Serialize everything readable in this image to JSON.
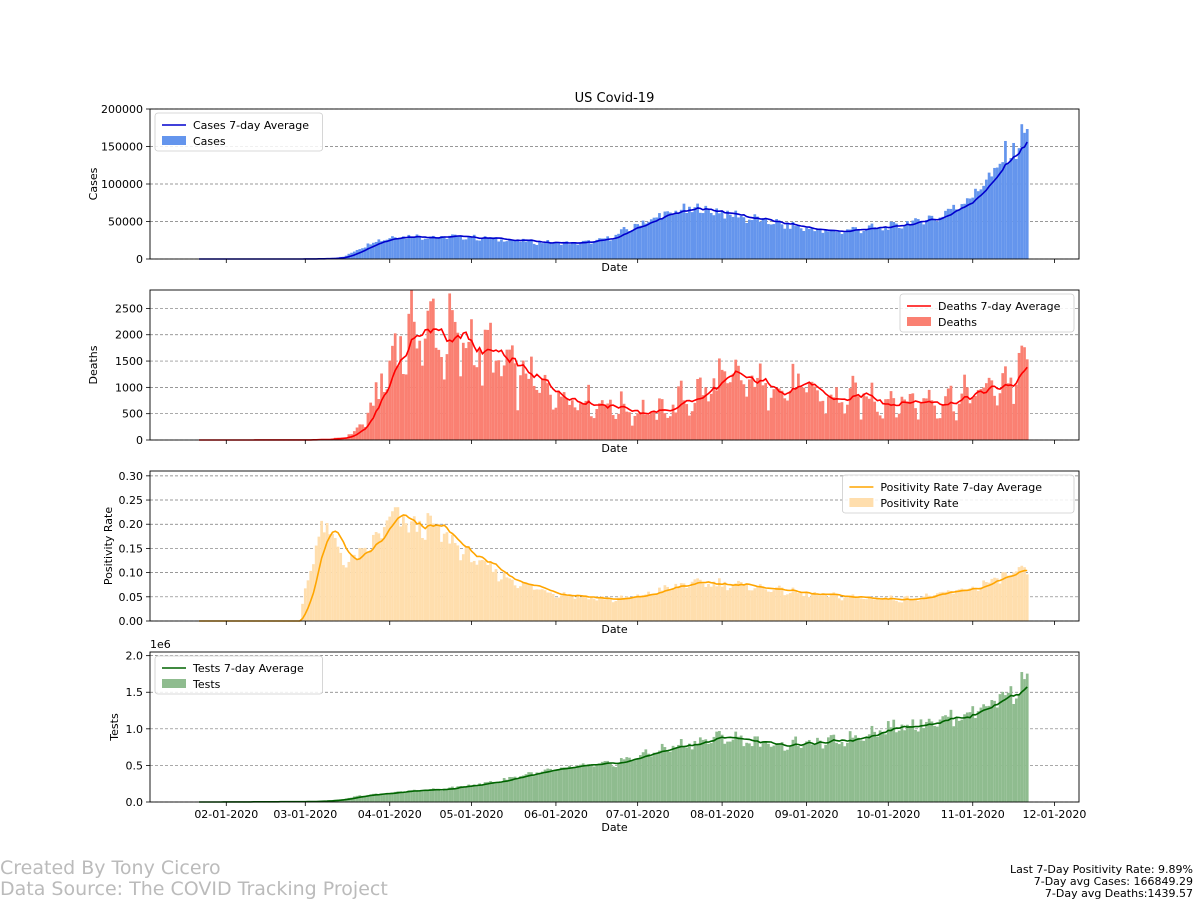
{
  "chart_data": [
    {
      "type": "bar",
      "title": "US Covid-19",
      "xlabel": "Date",
      "ylabel": "Cases",
      "ylim": [
        0,
        200000
      ],
      "yticks": [
        0,
        50000,
        100000,
        150000,
        200000
      ],
      "ytick_labels": [
        "0",
        "50000",
        "100000",
        "150000",
        "200000"
      ],
      "grid": "horizontal dashed",
      "legend_position": "top-left",
      "bar_color": "#6495ed",
      "line_color": "#0000cd",
      "series": [
        {
          "name": "Cases 7-day Average",
          "kind": "line"
        },
        {
          "name": "Cases",
          "kind": "bar"
        }
      ],
      "anchors": [
        [
          "2020-01-22",
          0
        ],
        [
          "2020-02-20",
          10
        ],
        [
          "2020-03-01",
          100
        ],
        [
          "2020-03-10",
          600
        ],
        [
          "2020-03-15",
          3000
        ],
        [
          "2020-03-20",
          12000
        ],
        [
          "2020-03-25",
          22000
        ],
        [
          "2020-03-31",
          28000
        ],
        [
          "2020-04-05",
          31000
        ],
        [
          "2020-04-10",
          30500
        ],
        [
          "2020-04-20",
          29000
        ],
        [
          "2020-04-26",
          30000
        ],
        [
          "2020-05-05",
          28000
        ],
        [
          "2020-05-15",
          25500
        ],
        [
          "2020-05-25",
          22500
        ],
        [
          "2020-06-05",
          21000
        ],
        [
          "2020-06-12",
          22000
        ],
        [
          "2020-06-20",
          27000
        ],
        [
          "2020-06-25",
          35000
        ],
        [
          "2020-07-01",
          46000
        ],
        [
          "2020-07-10",
          58000
        ],
        [
          "2020-07-18",
          65000
        ],
        [
          "2020-07-25",
          66500
        ],
        [
          "2020-08-01",
          62000
        ],
        [
          "2020-08-10",
          55000
        ],
        [
          "2020-08-20",
          48000
        ],
        [
          "2020-08-30",
          42000
        ],
        [
          "2020-09-10",
          36000
        ],
        [
          "2020-09-20",
          40000
        ],
        [
          "2020-10-01",
          42000
        ],
        [
          "2020-10-10",
          49000
        ],
        [
          "2020-10-20",
          57000
        ],
        [
          "2020-10-30",
          80000
        ],
        [
          "2020-11-05",
          100000
        ],
        [
          "2020-11-10",
          120000
        ],
        [
          "2020-11-15",
          145000
        ],
        [
          "2020-11-20",
          162000
        ],
        [
          "2020-11-21",
          167000
        ]
      ],
      "amp": 0.12
    },
    {
      "type": "bar",
      "title": "",
      "xlabel": "Date",
      "ylabel": "Deaths",
      "ylim": [
        0,
        2850
      ],
      "yticks": [
        0,
        500,
        1000,
        1500,
        2000,
        2500
      ],
      "ytick_labels": [
        "0",
        "500",
        "1000",
        "1500",
        "2000",
        "2500"
      ],
      "grid": "horizontal dashed",
      "legend_position": "top-right",
      "bar_color": "#fa8072",
      "line_color": "#ff0000",
      "series": [
        {
          "name": "Deaths 7-day Average",
          "kind": "line"
        },
        {
          "name": "Deaths",
          "kind": "bar"
        }
      ],
      "anchors": [
        [
          "2020-01-22",
          0
        ],
        [
          "2020-03-01",
          2
        ],
        [
          "2020-03-10",
          15
        ],
        [
          "2020-03-15",
          50
        ],
        [
          "2020-03-20",
          180
        ],
        [
          "2020-03-25",
          550
        ],
        [
          "2020-03-31",
          1300
        ],
        [
          "2020-04-05",
          1900
        ],
        [
          "2020-04-10",
          2050
        ],
        [
          "2020-04-15",
          2100
        ],
        [
          "2020-04-20",
          1950
        ],
        [
          "2020-04-25",
          1850
        ],
        [
          "2020-04-30",
          1780
        ],
        [
          "2020-05-05",
          1700
        ],
        [
          "2020-05-10",
          1500
        ],
        [
          "2020-05-15",
          1300
        ],
        [
          "2020-05-20",
          1200
        ],
        [
          "2020-05-25",
          1050
        ],
        [
          "2020-06-01",
          900
        ],
        [
          "2020-06-10",
          780
        ],
        [
          "2020-06-20",
          670
        ],
        [
          "2020-06-30",
          560
        ],
        [
          "2020-07-08",
          500
        ],
        [
          "2020-07-15",
          700
        ],
        [
          "2020-07-25",
          900
        ],
        [
          "2020-08-01",
          1120
        ],
        [
          "2020-08-10",
          1080
        ],
        [
          "2020-08-20",
          1050
        ],
        [
          "2020-08-30",
          950
        ],
        [
          "2020-09-05",
          850
        ],
        [
          "2020-09-10",
          760
        ],
        [
          "2020-09-20",
          800
        ],
        [
          "2020-09-30",
          770
        ],
        [
          "2020-10-10",
          720
        ],
        [
          "2020-10-20",
          780
        ],
        [
          "2020-10-31",
          830
        ],
        [
          "2020-11-08",
          1000
        ],
        [
          "2020-11-15",
          1150
        ],
        [
          "2020-11-21",
          1440
        ]
      ],
      "amp": 0.32
    },
    {
      "type": "bar",
      "title": "",
      "xlabel": "Date",
      "ylabel": "Positivity Rate",
      "ylim": [
        0,
        0.31
      ],
      "yticks": [
        0,
        0.05,
        0.1,
        0.15,
        0.2,
        0.25,
        0.3
      ],
      "ytick_labels": [
        "0.00",
        "0.05",
        "0.10",
        "0.15",
        "0.20",
        "0.25",
        "0.30"
      ],
      "grid": "horizontal dashed",
      "legend_position": "top-right",
      "bar_color": "#ffdead",
      "line_color": "#ffa500",
      "series": [
        {
          "name": "Positivity Rate 7-day Average",
          "kind": "line"
        },
        {
          "name": "Positivity Rate",
          "kind": "bar"
        }
      ],
      "anchors": [
        [
          "2020-01-22",
          0
        ],
        [
          "2020-02-28",
          0
        ],
        [
          "2020-03-01",
          0.07
        ],
        [
          "2020-03-05",
          0.15
        ],
        [
          "2020-03-08",
          0.2
        ],
        [
          "2020-03-12",
          0.16
        ],
        [
          "2020-03-16",
          0.12
        ],
        [
          "2020-03-20",
          0.13
        ],
        [
          "2020-03-26",
          0.16
        ],
        [
          "2020-04-01",
          0.21
        ],
        [
          "2020-04-05",
          0.21
        ],
        [
          "2020-04-10",
          0.19
        ],
        [
          "2020-04-15",
          0.2
        ],
        [
          "2020-04-20",
          0.18
        ],
        [
          "2020-04-25",
          0.16
        ],
        [
          "2020-05-01",
          0.13
        ],
        [
          "2020-05-10",
          0.1
        ],
        [
          "2020-05-20",
          0.075
        ],
        [
          "2020-06-01",
          0.057
        ],
        [
          "2020-06-15",
          0.048
        ],
        [
          "2020-06-22",
          0.044
        ],
        [
          "2020-07-01",
          0.05
        ],
        [
          "2020-07-10",
          0.065
        ],
        [
          "2020-07-20",
          0.077
        ],
        [
          "2020-07-31",
          0.078
        ],
        [
          "2020-08-10",
          0.072
        ],
        [
          "2020-08-20",
          0.066
        ],
        [
          "2020-09-01",
          0.055
        ],
        [
          "2020-09-15",
          0.05
        ],
        [
          "2020-09-25",
          0.047
        ],
        [
          "2020-10-05",
          0.045
        ],
        [
          "2020-10-15",
          0.05
        ],
        [
          "2020-10-25",
          0.06
        ],
        [
          "2020-11-05",
          0.075
        ],
        [
          "2020-11-12",
          0.09
        ],
        [
          "2020-11-17",
          0.1
        ],
        [
          "2020-11-21",
          0.099
        ]
      ],
      "amp": 0.12
    },
    {
      "type": "bar",
      "title": "",
      "xlabel": "Date",
      "ylabel": "Tests",
      "offset_label": "1e6",
      "ylim": [
        0,
        2050000
      ],
      "yticks": [
        0,
        500000,
        1000000,
        1500000,
        2000000
      ],
      "ytick_labels": [
        "0.0",
        "0.5",
        "1.0",
        "1.5",
        "2.0"
      ],
      "grid": "horizontal dashed",
      "legend_position": "top-left",
      "bar_color": "#8fbc8f",
      "line_color": "#006400",
      "series": [
        {
          "name": "Tests 7-day Average",
          "kind": "line"
        },
        {
          "name": "Tests",
          "kind": "bar"
        }
      ],
      "anchors": [
        [
          "2020-01-22",
          0
        ],
        [
          "2020-03-01",
          5000
        ],
        [
          "2020-03-10",
          20000
        ],
        [
          "2020-03-15",
          40000
        ],
        [
          "2020-03-20",
          80000
        ],
        [
          "2020-03-31",
          120000
        ],
        [
          "2020-04-10",
          160000
        ],
        [
          "2020-04-20",
          170000
        ],
        [
          "2020-04-30",
          230000
        ],
        [
          "2020-05-10",
          280000
        ],
        [
          "2020-05-20",
          370000
        ],
        [
          "2020-05-31",
          430000
        ],
        [
          "2020-06-10",
          490000
        ],
        [
          "2020-06-20",
          510000
        ],
        [
          "2020-07-01",
          620000
        ],
        [
          "2020-07-10",
          720000
        ],
        [
          "2020-07-20",
          800000
        ],
        [
          "2020-07-31",
          880000
        ],
        [
          "2020-08-05",
          880000
        ],
        [
          "2020-08-15",
          800000
        ],
        [
          "2020-08-25",
          790000
        ],
        [
          "2020-09-05",
          800000
        ],
        [
          "2020-09-15",
          850000
        ],
        [
          "2020-09-25",
          960000
        ],
        [
          "2020-10-05",
          1040000
        ],
        [
          "2020-10-15",
          1100000
        ],
        [
          "2020-10-25",
          1150000
        ],
        [
          "2020-11-05",
          1300000
        ],
        [
          "2020-11-12",
          1450000
        ],
        [
          "2020-11-17",
          1550000
        ],
        [
          "2020-11-21",
          1680000
        ]
      ],
      "amp": 0.08
    }
  ],
  "x_axis": {
    "start": "2020-01-22",
    "end": "2020-11-21",
    "xlim": [
      "2020-01-04",
      "2020-12-10"
    ],
    "ticks": [
      {
        "date": "2020-02-01",
        "label": "02-01-2020"
      },
      {
        "date": "2020-03-01",
        "label": "03-01-2020"
      },
      {
        "date": "2020-04-01",
        "label": "04-01-2020"
      },
      {
        "date": "2020-05-01",
        "label": "05-01-2020"
      },
      {
        "date": "2020-06-01",
        "label": "06-01-2020"
      },
      {
        "date": "2020-07-01",
        "label": "07-01-2020"
      },
      {
        "date": "2020-08-01",
        "label": "08-01-2020"
      },
      {
        "date": "2020-09-01",
        "label": "09-01-2020"
      },
      {
        "date": "2020-10-01",
        "label": "10-01-2020"
      },
      {
        "date": "2020-11-01",
        "label": "11-01-2020"
      },
      {
        "date": "2020-12-01",
        "label": "12-01-2020"
      }
    ]
  },
  "credits": {
    "line1": "Created By Tony Cicero",
    "line2": "Data Source: The COVID Tracking Project"
  },
  "stats": {
    "positivity": "Last 7-Day Positivity Rate: 9.89%",
    "cases": "7-Day avg Cases: 166849.29",
    "deaths": "7-Day avg Deaths:1439.57"
  }
}
